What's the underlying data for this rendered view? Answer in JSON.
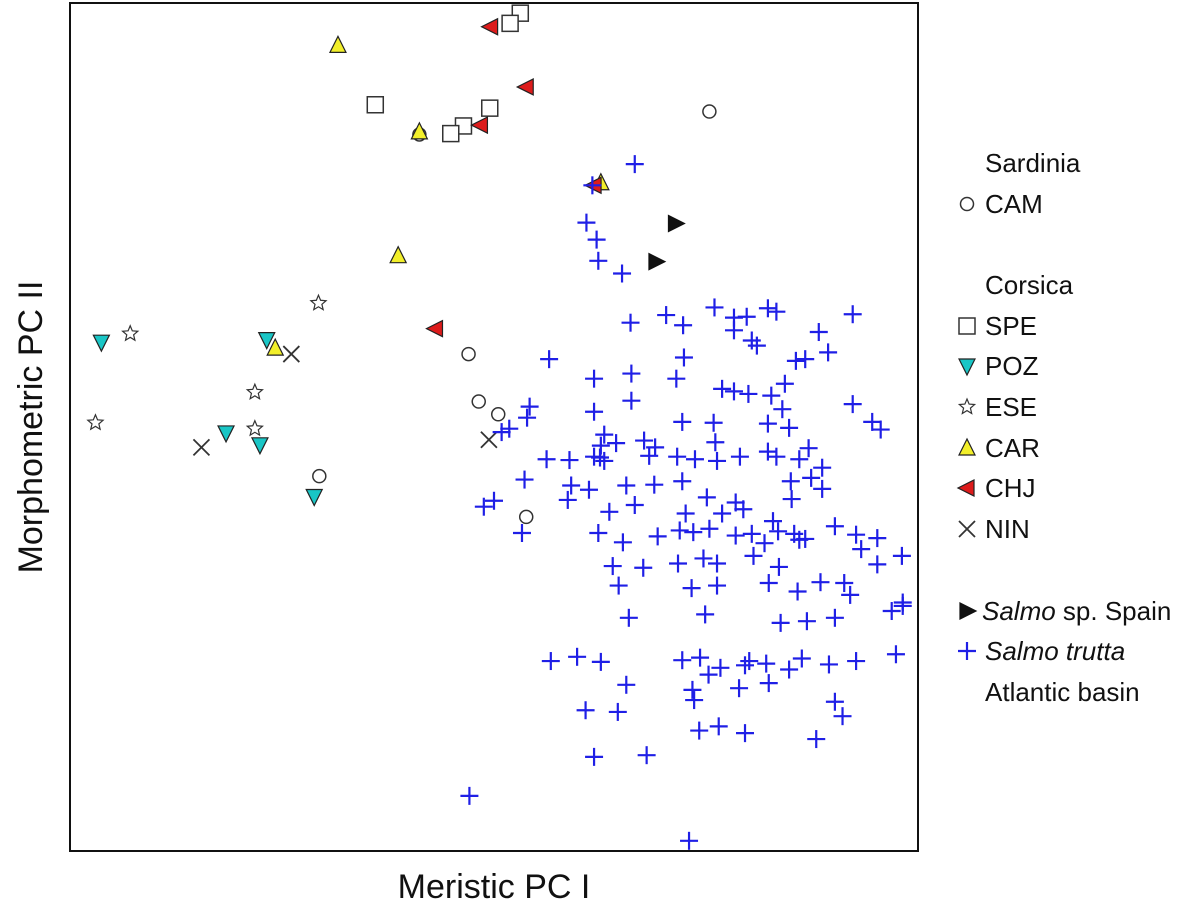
{
  "chart_data": {
    "type": "scatter",
    "xlabel": "Meristic PC I",
    "ylabel": "Morphometric PC II",
    "xlim": [
      0,
      100
    ],
    "ylim": [
      0,
      100
    ],
    "grid": false,
    "legend_position": "right",
    "legend": {
      "groups": [
        {
          "heading": "Sardinia",
          "items": [
            "CAM"
          ]
        },
        {
          "heading": "Corsica",
          "items": [
            "SPE",
            "POZ",
            "ESE",
            "CAR",
            "CHJ",
            "NIN"
          ]
        },
        {
          "heading": "",
          "items": [
            "SALMO_SP",
            "SALMO_TRUTTA"
          ]
        }
      ],
      "salmo_sp": {
        "italic": "Salmo",
        "rest": " sp. Spain"
      },
      "salmo_trutta": {
        "italic": "Salmo trutta",
        "line2": "Atlantic basin"
      }
    },
    "series": [
      {
        "name": "CAM",
        "marker": "circle",
        "fill": "#ffffff",
        "stroke": "#333333",
        "points": [
          [
            41.2,
            84.5
          ],
          [
            75.4,
            87.2
          ],
          [
            47.0,
            58.6
          ],
          [
            48.2,
            53.0
          ],
          [
            50.5,
            51.5
          ],
          [
            53.8,
            39.4
          ],
          [
            29.4,
            44.2
          ]
        ]
      },
      {
        "name": "SPE",
        "marker": "square",
        "fill": "#ffffff",
        "stroke": "#333333",
        "points": [
          [
            53.1,
            98.8
          ],
          [
            51.9,
            97.6
          ],
          [
            36.0,
            88.0
          ],
          [
            49.5,
            87.6
          ],
          [
            46.4,
            85.5
          ],
          [
            44.9,
            84.6
          ]
        ]
      },
      {
        "name": "POZ",
        "marker": "triangle-down",
        "fill": "#19c6c6",
        "stroke": "#222222",
        "points": [
          [
            3.7,
            60.0
          ],
          [
            23.2,
            60.3
          ],
          [
            18.4,
            49.3
          ],
          [
            22.4,
            47.9
          ],
          [
            28.8,
            41.8
          ]
        ]
      },
      {
        "name": "ESE",
        "marker": "star",
        "fill": "#ffffff",
        "stroke": "#333333",
        "points": [
          [
            7.1,
            61.0
          ],
          [
            29.3,
            64.6
          ],
          [
            21.8,
            54.1
          ],
          [
            3.0,
            50.5
          ],
          [
            21.8,
            49.8
          ]
        ]
      },
      {
        "name": "CAR",
        "marker": "triangle-up",
        "fill": "#f2ef2a",
        "stroke": "#222222",
        "points": [
          [
            31.6,
            95.0
          ],
          [
            41.2,
            84.8
          ],
          [
            38.7,
            70.2
          ],
          [
            62.6,
            78.8
          ],
          [
            24.2,
            59.3
          ]
        ]
      },
      {
        "name": "CHJ",
        "marker": "triangle-left",
        "fill": "#dd1b1b",
        "stroke": "#222222",
        "points": [
          [
            49.6,
            97.2
          ],
          [
            53.8,
            90.1
          ],
          [
            48.4,
            85.6
          ],
          [
            61.8,
            78.5
          ],
          [
            43.1,
            61.6
          ]
        ]
      },
      {
        "name": "NIN",
        "marker": "x",
        "fill": "none",
        "stroke": "#333333",
        "points": [
          [
            26.1,
            58.6
          ],
          [
            15.5,
            47.6
          ],
          [
            49.4,
            48.5
          ]
        ]
      },
      {
        "name": "Salmo sp. Spain",
        "marker": "triangle-right",
        "fill": "#111111",
        "stroke": "#111111",
        "points": [
          [
            71.4,
            74.0
          ],
          [
            69.1,
            69.5
          ]
        ]
      },
      {
        "name": "Salmo trutta",
        "marker": "plus",
        "fill": "none",
        "stroke": "#1f1fe6",
        "points": [
          [
            66.6,
            81.0
          ],
          [
            61.6,
            78.5
          ],
          [
            60.9,
            74.1
          ],
          [
            62.1,
            72.1
          ],
          [
            62.3,
            69.6
          ],
          [
            65.1,
            68.1
          ],
          [
            66.1,
            62.3
          ],
          [
            72.3,
            62.0
          ],
          [
            76.0,
            64.1
          ],
          [
            78.3,
            62.9
          ],
          [
            79.8,
            63.0
          ],
          [
            82.3,
            64.0
          ],
          [
            83.3,
            63.6
          ],
          [
            78.3,
            61.4
          ],
          [
            80.4,
            60.2
          ],
          [
            88.3,
            61.2
          ],
          [
            92.3,
            63.3
          ],
          [
            89.4,
            58.8
          ],
          [
            85.6,
            57.8
          ],
          [
            56.5,
            58.0
          ],
          [
            61.8,
            55.7
          ],
          [
            66.2,
            56.3
          ],
          [
            71.5,
            55.7
          ],
          [
            76.9,
            54.5
          ],
          [
            78.3,
            54.2
          ],
          [
            80.0,
            53.9
          ],
          [
            82.7,
            53.7
          ],
          [
            84.0,
            52.1
          ],
          [
            92.3,
            52.7
          ],
          [
            94.6,
            50.6
          ],
          [
            95.6,
            49.7
          ],
          [
            72.2,
            50.6
          ],
          [
            75.9,
            50.5
          ],
          [
            82.3,
            50.4
          ],
          [
            84.8,
            49.9
          ],
          [
            66.2,
            53.1
          ],
          [
            61.8,
            51.8
          ],
          [
            54.2,
            52.4
          ],
          [
            53.9,
            51.1
          ],
          [
            50.9,
            49.4
          ],
          [
            51.8,
            49.8
          ],
          [
            63.0,
            49.1
          ],
          [
            64.4,
            48.1
          ],
          [
            67.7,
            48.4
          ],
          [
            62.6,
            47.8
          ],
          [
            62.5,
            46.4
          ],
          [
            69.0,
            47.6
          ],
          [
            71.6,
            46.5
          ],
          [
            76.1,
            48.2
          ],
          [
            87.1,
            47.5
          ],
          [
            56.2,
            46.2
          ],
          [
            58.9,
            46.1
          ],
          [
            61.8,
            46.5
          ],
          [
            63.0,
            46.0
          ],
          [
            68.3,
            46.6
          ],
          [
            73.7,
            46.2
          ],
          [
            76.3,
            46.0
          ],
          [
            79.0,
            46.5
          ],
          [
            82.3,
            47.1
          ],
          [
            83.3,
            46.5
          ],
          [
            86.0,
            46.2
          ],
          [
            88.7,
            45.2
          ],
          [
            53.6,
            43.8
          ],
          [
            59.1,
            43.1
          ],
          [
            61.2,
            42.6
          ],
          [
            65.6,
            43.1
          ],
          [
            68.9,
            43.2
          ],
          [
            72.2,
            43.6
          ],
          [
            75.1,
            41.7
          ],
          [
            78.5,
            41.1
          ],
          [
            85.0,
            43.6
          ],
          [
            88.7,
            42.7
          ],
          [
            58.7,
            41.4
          ],
          [
            63.6,
            40.0
          ],
          [
            66.6,
            40.8
          ],
          [
            72.6,
            39.8
          ],
          [
            76.9,
            39.8
          ],
          [
            79.4,
            40.3
          ],
          [
            85.1,
            41.5
          ],
          [
            48.8,
            40.6
          ],
          [
            50.0,
            41.3
          ],
          [
            73.5,
            37.6
          ],
          [
            82.9,
            38.9
          ],
          [
            85.4,
            37.4
          ],
          [
            90.2,
            38.3
          ],
          [
            92.7,
            37.3
          ],
          [
            95.2,
            36.9
          ],
          [
            53.3,
            37.5
          ],
          [
            62.3,
            37.5
          ],
          [
            65.2,
            36.4
          ],
          [
            69.3,
            37.1
          ],
          [
            71.9,
            37.8
          ],
          [
            75.4,
            38.0
          ],
          [
            78.5,
            37.2
          ],
          [
            80.4,
            37.4
          ],
          [
            81.9,
            36.3
          ],
          [
            83.5,
            37.7
          ],
          [
            86.7,
            36.8
          ],
          [
            64.0,
            33.6
          ],
          [
            67.6,
            33.4
          ],
          [
            71.7,
            33.9
          ],
          [
            74.7,
            34.5
          ],
          [
            76.3,
            33.9
          ],
          [
            80.6,
            34.8
          ],
          [
            83.6,
            33.5
          ],
          [
            86.0,
            36.7
          ],
          [
            93.3,
            35.6
          ],
          [
            95.2,
            33.8
          ],
          [
            98.1,
            34.8
          ],
          [
            64.7,
            31.3
          ],
          [
            73.3,
            31.0
          ],
          [
            76.3,
            31.3
          ],
          [
            82.4,
            31.6
          ],
          [
            85.8,
            30.6
          ],
          [
            88.5,
            31.7
          ],
          [
            91.3,
            31.6
          ],
          [
            92.0,
            30.2
          ],
          [
            98.2,
            29.3
          ],
          [
            65.9,
            27.5
          ],
          [
            74.9,
            27.9
          ],
          [
            83.8,
            26.9
          ],
          [
            86.9,
            27.1
          ],
          [
            90.2,
            27.5
          ],
          [
            96.9,
            28.3
          ],
          [
            98.2,
            28.9
          ],
          [
            56.7,
            22.4
          ],
          [
            59.8,
            22.9
          ],
          [
            62.6,
            22.3
          ],
          [
            72.2,
            22.5
          ],
          [
            74.3,
            22.8
          ],
          [
            75.3,
            20.8
          ],
          [
            76.7,
            21.6
          ],
          [
            79.6,
            21.9
          ],
          [
            80.1,
            22.4
          ],
          [
            82.1,
            22.1
          ],
          [
            86.3,
            22.7
          ],
          [
            89.5,
            22.0
          ],
          [
            92.7,
            22.4
          ],
          [
            97.4,
            23.2
          ],
          [
            65.6,
            19.6
          ],
          [
            73.4,
            19.0
          ],
          [
            78.9,
            19.2
          ],
          [
            82.4,
            19.8
          ],
          [
            84.8,
            21.4
          ],
          [
            90.2,
            17.6
          ],
          [
            73.6,
            17.8
          ],
          [
            60.8,
            16.6
          ],
          [
            64.6,
            16.4
          ],
          [
            74.2,
            14.2
          ],
          [
            76.5,
            14.7
          ],
          [
            79.6,
            13.9
          ],
          [
            88.0,
            13.2
          ],
          [
            91.1,
            15.9
          ],
          [
            68.0,
            11.3
          ],
          [
            61.8,
            11.1
          ],
          [
            47.1,
            6.5
          ],
          [
            73.0,
            1.2
          ],
          [
            81.0,
            59.6
          ],
          [
            84.3,
            55.1
          ],
          [
            86.7,
            58.0
          ],
          [
            70.3,
            63.2
          ],
          [
            72.4,
            58.2
          ],
          [
            87.4,
            44.0
          ]
        ]
      }
    ]
  }
}
